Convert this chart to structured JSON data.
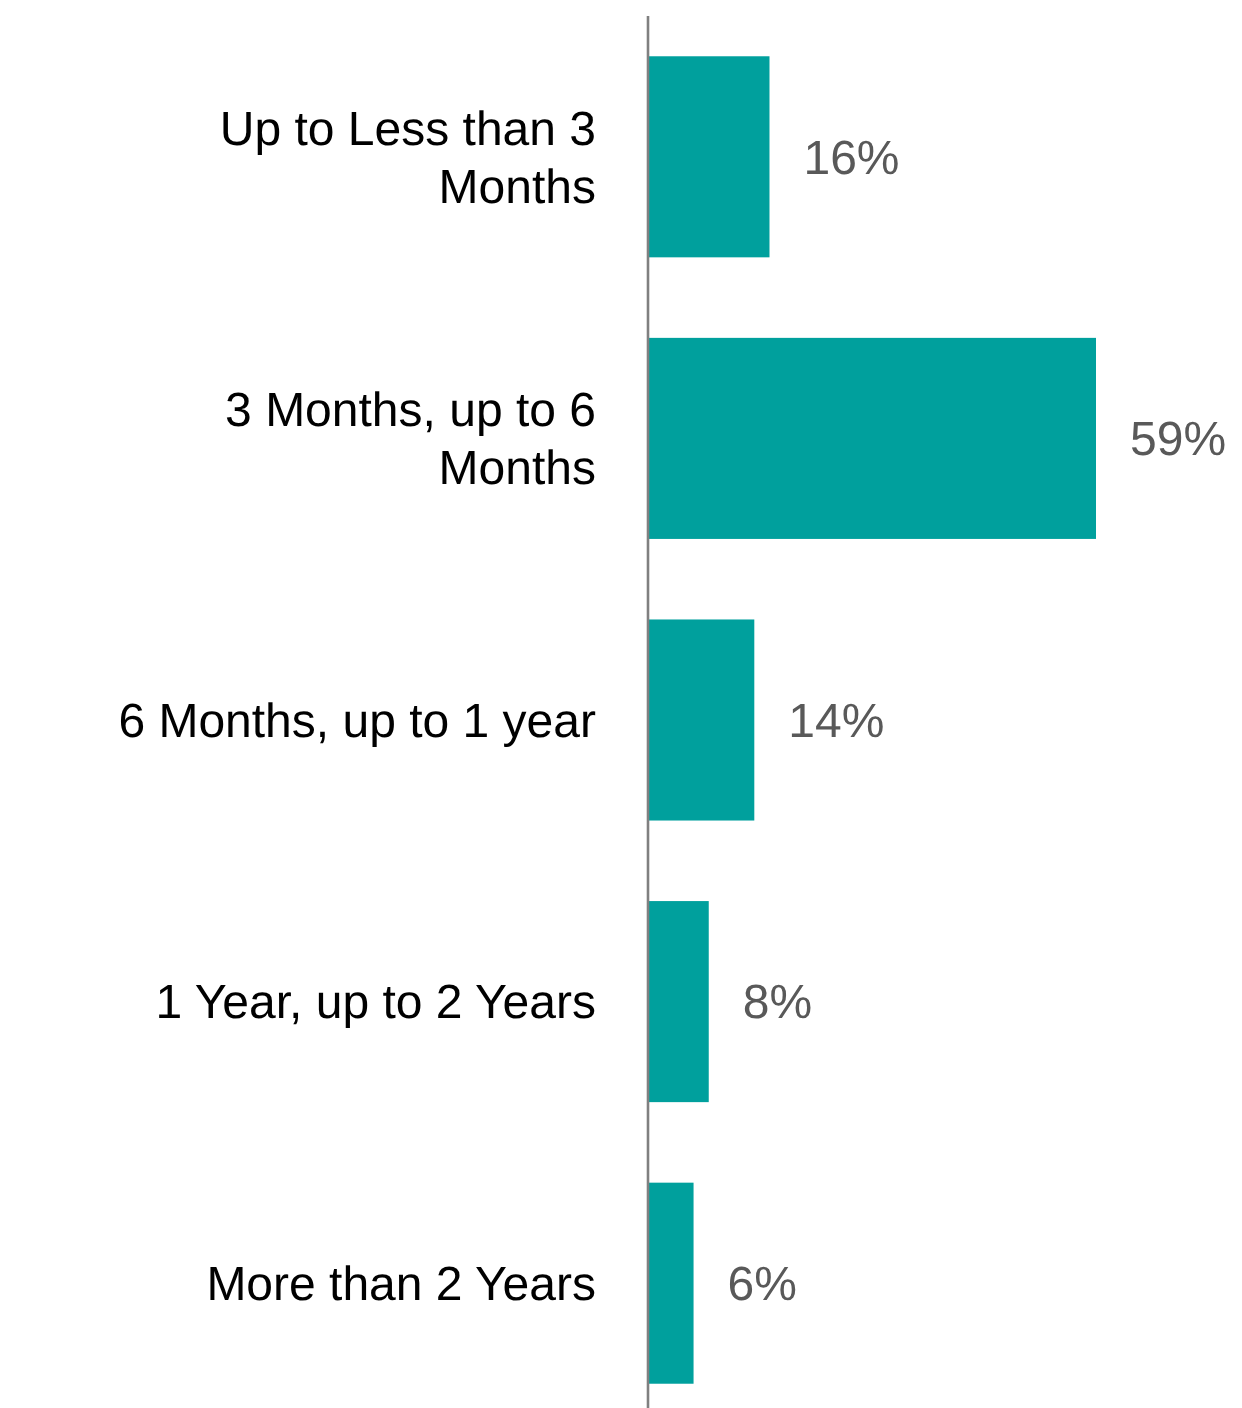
{
  "chart_data": {
    "type": "bar",
    "orientation": "horizontal",
    "categories": [
      "Up to Less than 3 Months",
      "3 Months, up to 6 Months",
      "6 Months, up to 1 year",
      "1 Year, up to 2 Years",
      "More than 2 Years"
    ],
    "values": [
      16,
      59,
      14,
      8,
      6
    ],
    "value_labels": [
      "16%",
      "59%",
      "14%",
      "8%",
      "6%"
    ],
    "color": "#00a09d"
  }
}
